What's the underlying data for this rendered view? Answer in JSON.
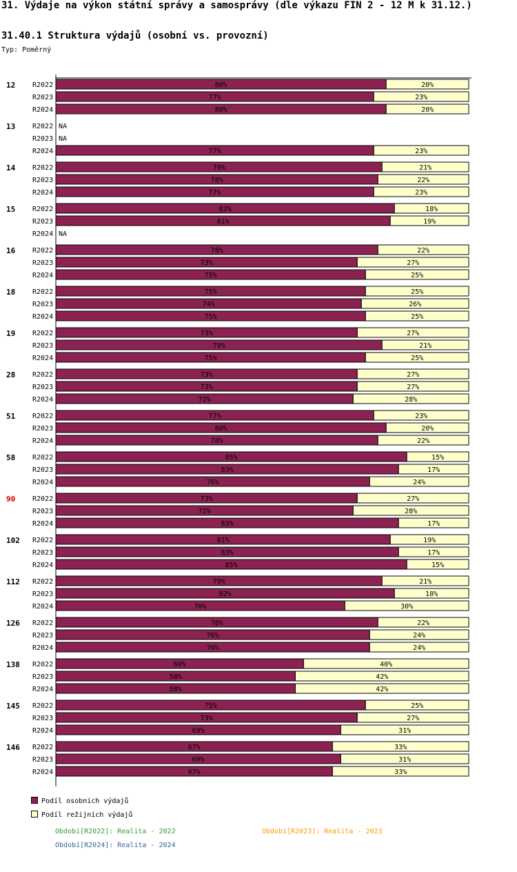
{
  "header": {
    "title": "31. Výdaje na výkon státní správy a samosprávy (dle výkazu FIN 2 - 12 M k 31.12.)",
    "subtitle": "31.40.1 Struktura výdajů (osobní vs. provozní)",
    "type_label": "Typ: Poměrný"
  },
  "colors": {
    "personal": "#8B2252",
    "overhead": "#FFFFCC",
    "highlight_group": "#CC0000",
    "period_2022": "#339933",
    "period_2023": "#FF9900",
    "period_2024": "#336699"
  },
  "chart_data": {
    "type": "bar",
    "orientation": "horizontal",
    "stacked": true,
    "normalized": true,
    "xlim": [
      0,
      100
    ],
    "unit": "%",
    "na_label": "NA",
    "series": [
      {
        "name": "Podíl osobních výdajů",
        "key": "personal"
      },
      {
        "name": "Podíl režijních výdajů",
        "key": "overhead"
      }
    ],
    "groups": [
      {
        "label": "12",
        "highlight": false,
        "rows": [
          {
            "period": "R2022",
            "personal": 80,
            "overhead": 20
          },
          {
            "period": "R2023",
            "personal": 77,
            "overhead": 23
          },
          {
            "period": "R2024",
            "personal": 80,
            "overhead": 20
          }
        ]
      },
      {
        "label": "13",
        "highlight": false,
        "rows": [
          {
            "period": "R2022",
            "personal": null,
            "overhead": null
          },
          {
            "period": "R2023",
            "personal": null,
            "overhead": null
          },
          {
            "period": "R2024",
            "personal": 77,
            "overhead": 23
          }
        ]
      },
      {
        "label": "14",
        "highlight": false,
        "rows": [
          {
            "period": "R2022",
            "personal": 79,
            "overhead": 21
          },
          {
            "period": "R2023",
            "personal": 78,
            "overhead": 22
          },
          {
            "period": "R2024",
            "personal": 77,
            "overhead": 23
          }
        ]
      },
      {
        "label": "15",
        "highlight": false,
        "rows": [
          {
            "period": "R2022",
            "personal": 82,
            "overhead": 18
          },
          {
            "period": "R2023",
            "personal": 81,
            "overhead": 19
          },
          {
            "period": "R2024",
            "personal": null,
            "overhead": null
          }
        ]
      },
      {
        "label": "16",
        "highlight": false,
        "rows": [
          {
            "period": "R2022",
            "personal": 78,
            "overhead": 22
          },
          {
            "period": "R2023",
            "personal": 73,
            "overhead": 27
          },
          {
            "period": "R2024",
            "personal": 75,
            "overhead": 25
          }
        ]
      },
      {
        "label": "18",
        "highlight": false,
        "rows": [
          {
            "period": "R2022",
            "personal": 75,
            "overhead": 25
          },
          {
            "period": "R2023",
            "personal": 74,
            "overhead": 26
          },
          {
            "period": "R2024",
            "personal": 75,
            "overhead": 25
          }
        ]
      },
      {
        "label": "19",
        "highlight": false,
        "rows": [
          {
            "period": "R2022",
            "personal": 73,
            "overhead": 27
          },
          {
            "period": "R2023",
            "personal": 79,
            "overhead": 21
          },
          {
            "period": "R2024",
            "personal": 75,
            "overhead": 25
          }
        ]
      },
      {
        "label": "28",
        "highlight": false,
        "rows": [
          {
            "period": "R2022",
            "personal": 73,
            "overhead": 27
          },
          {
            "period": "R2023",
            "personal": 73,
            "overhead": 27
          },
          {
            "period": "R2024",
            "personal": 72,
            "overhead": 28
          }
        ]
      },
      {
        "label": "51",
        "highlight": false,
        "rows": [
          {
            "period": "R2022",
            "personal": 77,
            "overhead": 23
          },
          {
            "period": "R2023",
            "personal": 80,
            "overhead": 20
          },
          {
            "period": "R2024",
            "personal": 78,
            "overhead": 22
          }
        ]
      },
      {
        "label": "58",
        "highlight": false,
        "rows": [
          {
            "period": "R2022",
            "personal": 85,
            "overhead": 15
          },
          {
            "period": "R2023",
            "personal": 83,
            "overhead": 17
          },
          {
            "period": "R2024",
            "personal": 76,
            "overhead": 24
          }
        ]
      },
      {
        "label": "90",
        "highlight": true,
        "rows": [
          {
            "period": "R2022",
            "personal": 73,
            "overhead": 27
          },
          {
            "period": "R2023",
            "personal": 72,
            "overhead": 28
          },
          {
            "period": "R2024",
            "personal": 83,
            "overhead": 17
          }
        ]
      },
      {
        "label": "102",
        "highlight": false,
        "rows": [
          {
            "period": "R2022",
            "personal": 81,
            "overhead": 19
          },
          {
            "period": "R2023",
            "personal": 83,
            "overhead": 17
          },
          {
            "period": "R2024",
            "personal": 85,
            "overhead": 15
          }
        ]
      },
      {
        "label": "112",
        "highlight": false,
        "rows": [
          {
            "period": "R2022",
            "personal": 79,
            "overhead": 21
          },
          {
            "period": "R2023",
            "personal": 82,
            "overhead": 18
          },
          {
            "period": "R2024",
            "personal": 70,
            "overhead": 30
          }
        ]
      },
      {
        "label": "126",
        "highlight": false,
        "rows": [
          {
            "period": "R2022",
            "personal": 78,
            "overhead": 22
          },
          {
            "period": "R2023",
            "personal": 76,
            "overhead": 24
          },
          {
            "period": "R2024",
            "personal": 76,
            "overhead": 24
          }
        ]
      },
      {
        "label": "138",
        "highlight": false,
        "rows": [
          {
            "period": "R2022",
            "personal": 60,
            "overhead": 40
          },
          {
            "period": "R2023",
            "personal": 58,
            "overhead": 42
          },
          {
            "period": "R2024",
            "personal": 58,
            "overhead": 42
          }
        ]
      },
      {
        "label": "145",
        "highlight": false,
        "rows": [
          {
            "period": "R2022",
            "personal": 75,
            "overhead": 25
          },
          {
            "period": "R2023",
            "personal": 73,
            "overhead": 27
          },
          {
            "period": "R2024",
            "personal": 69,
            "overhead": 31
          }
        ]
      },
      {
        "label": "146",
        "highlight": false,
        "rows": [
          {
            "period": "R2022",
            "personal": 67,
            "overhead": 33
          },
          {
            "period": "R2023",
            "personal": 69,
            "overhead": 31
          },
          {
            "period": "R2024",
            "personal": 67,
            "overhead": 33
          }
        ]
      }
    ]
  },
  "legend": {
    "personal_label": "Podíl osobních výdajů",
    "overhead_label": "Podíl režijních výdajů"
  },
  "periods": {
    "r2022": "Období[R2022]: Realita - 2022",
    "r2023": "Období[R2023]: Realita - 2023",
    "r2024": "Období[R2024]: Realita - 2024"
  }
}
